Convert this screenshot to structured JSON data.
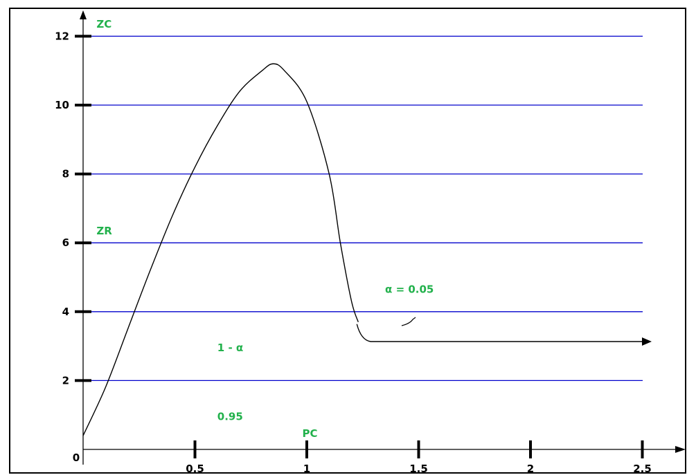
{
  "chart_data": {
    "type": "line",
    "title": "",
    "xlabel": "PC",
    "ylabel": "ZC",
    "xlim": [
      0,
      2.5
    ],
    "ylim": [
      0,
      12
    ],
    "x_ticks": [
      0.5,
      1,
      1.5,
      2,
      2.5
    ],
    "x_tick_labels": [
      "0.5",
      "1",
      "1.5",
      "2",
      "2.5"
    ],
    "y_ticks": [
      2,
      4,
      6,
      8,
      10,
      12
    ],
    "y_tick_labels": [
      "2",
      "4",
      "6",
      "8",
      "10",
      "12"
    ],
    "origin_label": "0",
    "grid": true,
    "grid_lines_y": [
      2,
      4,
      6,
      8,
      10,
      12
    ],
    "grid_color": "#0000cc",
    "curve_color": "#000000",
    "annotation_color": "#22b14c",
    "series": [
      {
        "values": [
          [
            0.0,
            0.4
          ],
          [
            0.1,
            1.8
          ],
          [
            0.2,
            3.5
          ],
          [
            0.3,
            5.2
          ],
          [
            0.4,
            6.8
          ],
          [
            0.5,
            8.2
          ],
          [
            0.6,
            9.4
          ],
          [
            0.7,
            10.4
          ],
          [
            0.8,
            11.0
          ],
          [
            0.85,
            11.2
          ],
          [
            0.9,
            11.0
          ],
          [
            1.0,
            10.1
          ],
          [
            1.1,
            8.0
          ],
          [
            1.15,
            6.0
          ],
          [
            1.2,
            4.3
          ],
          [
            1.23,
            3.7
          ]
        ]
      }
    ],
    "annotations": [
      {
        "text": "ZC",
        "x": 0.06,
        "y": 12.35
      },
      {
        "text": "ZR",
        "x": 0.06,
        "y": 6.35
      },
      {
        "text": "α = 0.05",
        "x": 1.35,
        "y": 4.65
      },
      {
        "text": "1 - α",
        "x": 0.6,
        "y": 2.95
      },
      {
        "text": "0.95",
        "x": 0.6,
        "y": 0.95
      },
      {
        "text": "PC",
        "x": 0.98,
        "y": 0.0
      }
    ]
  }
}
